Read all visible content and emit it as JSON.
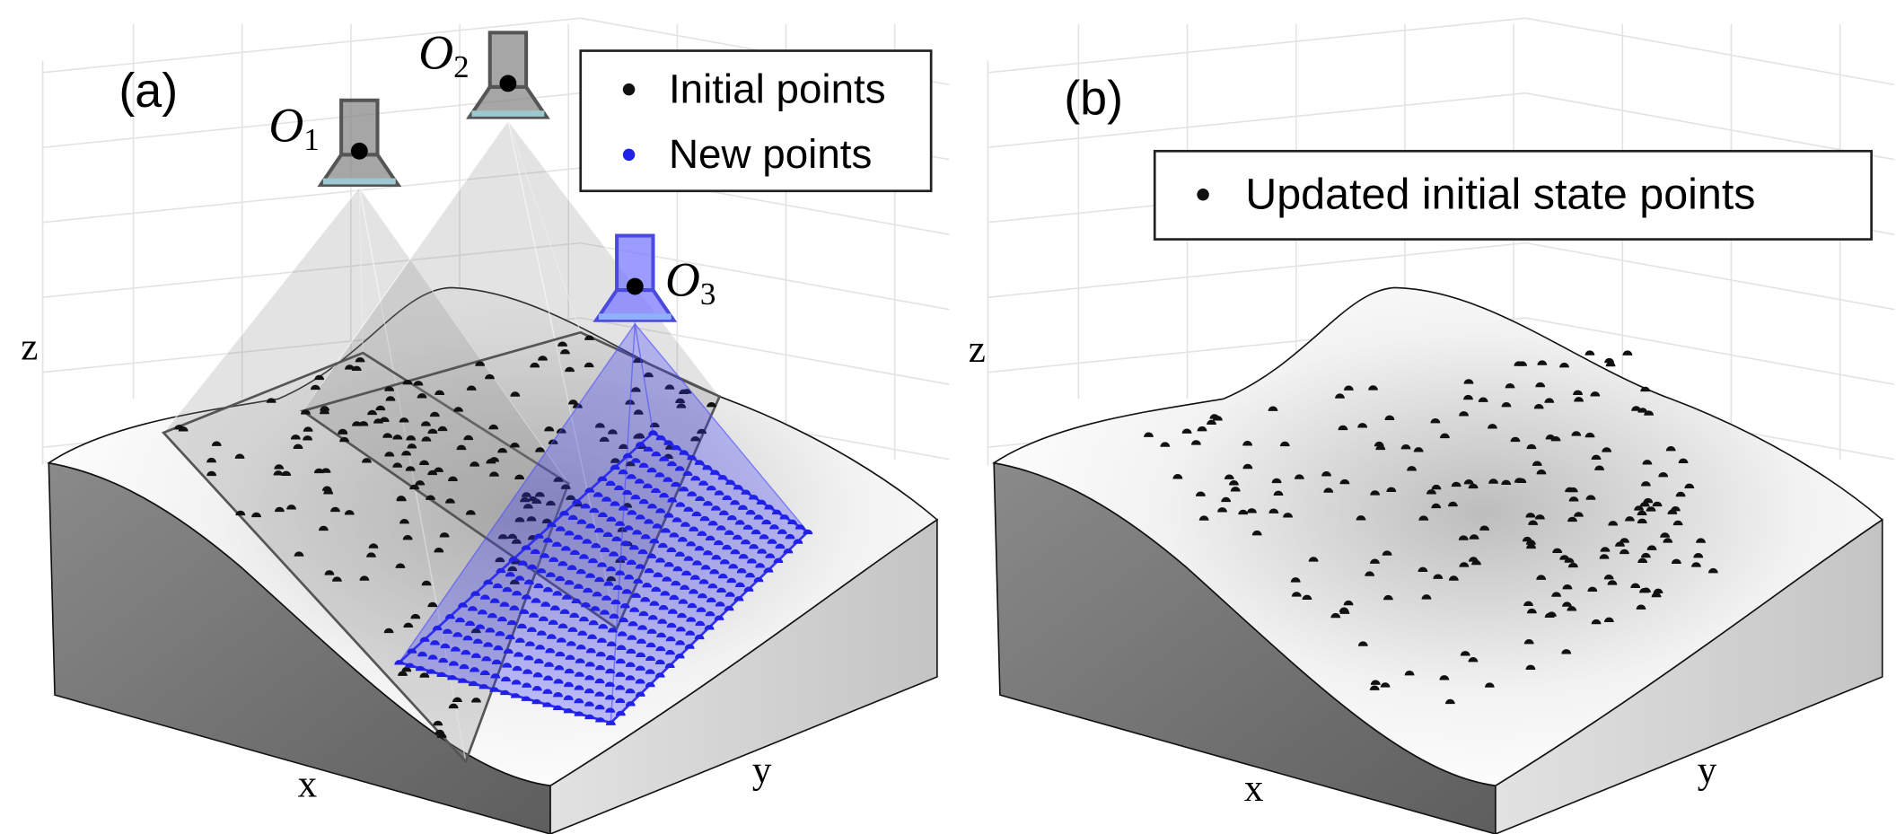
{
  "panels": [
    {
      "label": "(a)",
      "axes": {
        "x": "x",
        "y": "y",
        "z": "z"
      },
      "legend": [
        "Initial points",
        "New points"
      ],
      "cameras": [
        {
          "letter": "O",
          "subscript": "1"
        },
        {
          "letter": "O",
          "subscript": "2"
        },
        {
          "letter": "O",
          "subscript": "3"
        }
      ]
    },
    {
      "label": "(b)",
      "axes": {
        "x": "x",
        "y": "y",
        "z": "z"
      },
      "legend": [
        "Updated initial state points"
      ]
    }
  ]
}
